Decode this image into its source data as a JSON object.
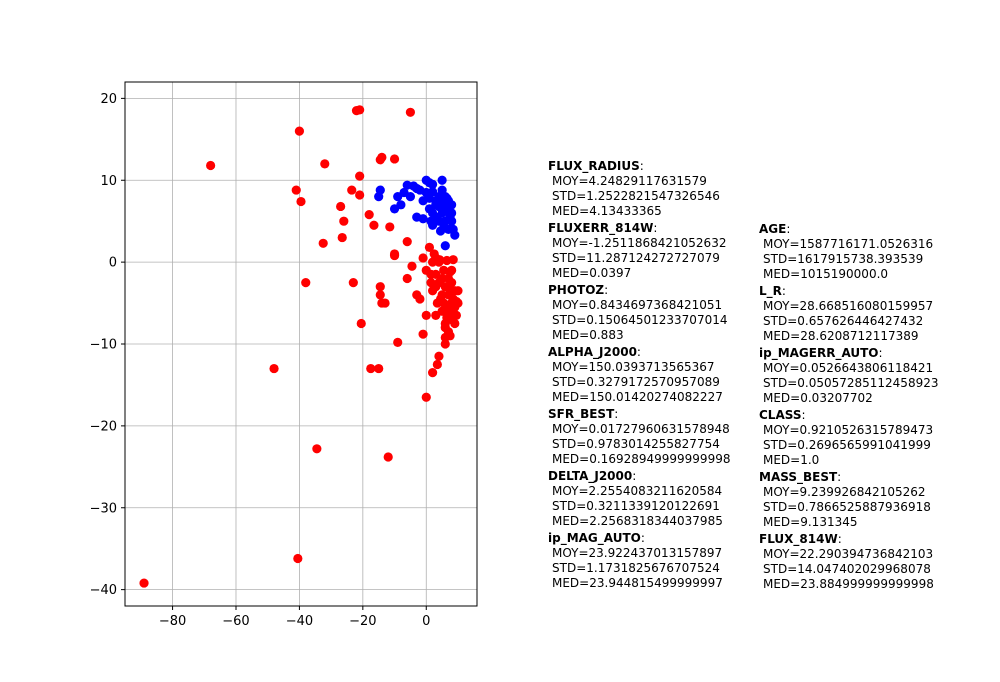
{
  "chart_data": {
    "type": "scatter",
    "xlim": [
      -95,
      16
    ],
    "ylim": [
      -42,
      22
    ],
    "grid": true,
    "x_ticks": [
      "−80",
      "−60",
      "−40",
      "−20",
      "0"
    ],
    "x_tick_values": [
      -80,
      -60,
      -40,
      -20,
      0
    ],
    "y_ticks": [
      "20",
      "10",
      "0",
      "−10",
      "−20",
      "−30",
      "−40"
    ],
    "y_tick_values": [
      20,
      10,
      0,
      -10,
      -20,
      -30,
      -40
    ],
    "series": [
      {
        "color": "#0000ff",
        "points": [
          [
            -15,
            8
          ],
          [
            -14.5,
            8.8
          ],
          [
            -10,
            6.5
          ],
          [
            -9,
            8
          ],
          [
            -8,
            7
          ],
          [
            -7,
            8.5
          ],
          [
            -6,
            9.4
          ],
          [
            -5,
            8
          ],
          [
            -4,
            9.3
          ],
          [
            -3,
            5.5
          ],
          [
            -3,
            9
          ],
          [
            -2,
            8.8
          ],
          [
            -1,
            5.3
          ],
          [
            -1,
            7.5
          ],
          [
            0,
            10
          ],
          [
            0,
            8.5
          ],
          [
            1,
            9.7
          ],
          [
            1,
            7.8
          ],
          [
            1,
            6.5
          ],
          [
            2,
            9.5
          ],
          [
            2,
            8.6
          ],
          [
            2,
            6
          ],
          [
            2,
            4.5
          ],
          [
            3,
            7.5
          ],
          [
            3,
            5.5
          ],
          [
            4,
            8
          ],
          [
            4,
            6.8
          ],
          [
            4,
            5
          ],
          [
            4.5,
            3.8
          ],
          [
            5,
            10
          ],
          [
            5,
            8.8
          ],
          [
            5,
            7.2
          ],
          [
            5,
            6
          ],
          [
            5.5,
            4.2
          ],
          [
            6,
            8
          ],
          [
            6,
            6.5
          ],
          [
            6,
            5
          ],
          [
            6,
            2
          ],
          [
            7,
            7.5
          ],
          [
            7,
            6.2
          ],
          [
            7,
            4
          ],
          [
            8,
            6
          ],
          [
            8,
            5
          ],
          [
            8,
            7
          ],
          [
            8.5,
            4
          ],
          [
            9,
            3.3
          ],
          [
            3,
            7
          ],
          [
            6.5,
            7.8
          ],
          [
            7.5,
            5.5
          ],
          [
            1.5,
            5
          ]
        ]
      },
      {
        "color": "#ff0000",
        "points": [
          [
            -89,
            -39.2
          ],
          [
            -68,
            11.8
          ],
          [
            -48,
            -13
          ],
          [
            -40.5,
            -36.2
          ],
          [
            -41,
            8.8
          ],
          [
            -40,
            16
          ],
          [
            -39.5,
            7.4
          ],
          [
            -38,
            -2.5
          ],
          [
            -34.5,
            -22.8
          ],
          [
            -32.5,
            2.3
          ],
          [
            -32,
            12
          ],
          [
            -27,
            6.8
          ],
          [
            -26.5,
            3
          ],
          [
            -26,
            5
          ],
          [
            -23.5,
            8.8
          ],
          [
            -23,
            -2.5
          ],
          [
            -22,
            18.5
          ],
          [
            -21,
            18.6
          ],
          [
            -21,
            10.5
          ],
          [
            -21,
            8.2
          ],
          [
            -20.5,
            -7.5
          ],
          [
            -18,
            5.8
          ],
          [
            -17.5,
            -13
          ],
          [
            -16.5,
            4.5
          ],
          [
            -15,
            -13
          ],
          [
            -14.5,
            12.5
          ],
          [
            -14,
            12.8
          ],
          [
            -14.5,
            -3
          ],
          [
            -14.5,
            -4
          ],
          [
            -14,
            -5
          ],
          [
            -13,
            -5
          ],
          [
            -12,
            -23.8
          ],
          [
            -11.5,
            4.3
          ],
          [
            -10,
            12.6
          ],
          [
            -10,
            1
          ],
          [
            -10,
            0.8
          ],
          [
            -9,
            -9.8
          ],
          [
            -6,
            2.5
          ],
          [
            -6,
            -2
          ],
          [
            -5,
            18.3
          ],
          [
            -4.5,
            -0.5
          ],
          [
            -3,
            -4
          ],
          [
            -2,
            -4.5
          ],
          [
            -1,
            -8.8
          ],
          [
            -1,
            0.5
          ],
          [
            0,
            -16.5
          ],
          [
            0,
            -1
          ],
          [
            0,
            -6.5
          ],
          [
            1,
            1.8
          ],
          [
            1.5,
            -1.5
          ],
          [
            1.5,
            -2.5
          ],
          [
            2,
            -3.5
          ],
          [
            2,
            0
          ],
          [
            2,
            -13.5
          ],
          [
            2.5,
            1
          ],
          [
            3,
            -6.5
          ],
          [
            3,
            -3
          ],
          [
            3,
            0.5
          ],
          [
            3.5,
            -5
          ],
          [
            3.5,
            -12.5
          ],
          [
            4,
            -11.5
          ],
          [
            4,
            -2.5
          ],
          [
            4,
            0
          ],
          [
            5,
            -4
          ],
          [
            5,
            -6
          ],
          [
            5,
            -2
          ],
          [
            5.5,
            -1
          ],
          [
            6,
            -8
          ],
          [
            6,
            -7.5
          ],
          [
            6,
            -10
          ],
          [
            6,
            -3
          ],
          [
            6.5,
            0.2
          ],
          [
            6.5,
            -5.5
          ],
          [
            7,
            -4
          ],
          [
            7,
            -6.5
          ],
          [
            7,
            -8.5
          ],
          [
            7,
            -3
          ],
          [
            7.5,
            -1.2
          ],
          [
            8,
            -5
          ],
          [
            8,
            -7
          ],
          [
            8,
            -2.5
          ],
          [
            8.5,
            -4.5
          ],
          [
            8.5,
            -6
          ],
          [
            9,
            -3.5
          ],
          [
            9,
            -5.5
          ],
          [
            9,
            -7.5
          ],
          [
            9.5,
            -4.8
          ],
          [
            10,
            -5
          ],
          [
            10,
            -3.5
          ],
          [
            8,
            -1
          ],
          [
            7,
            -2
          ],
          [
            6.5,
            -6.8
          ],
          [
            4.5,
            -4.5
          ],
          [
            5.5,
            -5
          ],
          [
            3,
            -1.5
          ],
          [
            8.5,
            0.3
          ],
          [
            9.5,
            -6.5
          ],
          [
            7.5,
            -9
          ],
          [
            6,
            -9.2
          ],
          [
            4.2,
            0.3
          ]
        ]
      }
    ]
  },
  "stats_columns": [
    [
      {
        "name": "FLUX_RADIUS",
        "moy": "MOY=4.24829117631579",
        "std": "STD=1.2522821547326546",
        "med": "MED=4.13433365"
      },
      {
        "name": "FLUXERR_814W",
        "moy": "MOY=-1.2511868421052632",
        "std": "STD=11.287124272727079",
        "med": "MED=0.0397"
      },
      {
        "name": "PHOTOZ",
        "moy": "MOY=0.8434697368421051",
        "std": "STD=0.15064501233707014",
        "med": "MED=0.883"
      },
      {
        "name": "ALPHA_J2000",
        "moy": "MOY=150.0393713565367",
        "std": "STD=0.3279172570957089",
        "med": "MED=150.01420274082227"
      },
      {
        "name": "SFR_BEST",
        "moy": "MOY=0.01727960631578948",
        "std": "STD=0.9783014255827754",
        "med": "MED=0.16928949999999998"
      },
      {
        "name": "DELTA_J2000",
        "moy": "MOY=2.2554083211620584",
        "std": "STD=0.3211339120122691",
        "med": "MED=2.2568318344037985"
      },
      {
        "name": "ip_MAG_AUTO",
        "moy": "MOY=23.922437013157897",
        "std": "STD=1.1731825676707524",
        "med": "MED=23.944815499999997"
      }
    ],
    [
      {
        "name": "AGE",
        "moy": "MOY=1587716171.0526316",
        "std": "STD=1617915738.393539",
        "med": "MED=1015190000.0"
      },
      {
        "name": "L_R",
        "moy": "MOY=28.668516080159957",
        "std": "STD=0.657626446427432",
        "med": "MED=28.6208712117389"
      },
      {
        "name": "ip_MAGERR_AUTO",
        "moy": "MOY=0.0526643806118421",
        "std": "STD=0.05057285112458923",
        "med": "MED=0.03207702"
      },
      {
        "name": "CLASS",
        "moy": "MOY=0.9210526315789473",
        "std": "STD=0.2696565991041999",
        "med": "MED=1.0"
      },
      {
        "name": "MASS_BEST",
        "moy": "MOY=9.239926842105262",
        "std": "STD=0.7866525887936918",
        "med": "MED=9.131345"
      },
      {
        "name": "FLUX_814W",
        "moy": "MOY=22.290394736842103",
        "std": "STD=14.047402029968078",
        "med": "MED=23.884999999999998"
      }
    ]
  ]
}
